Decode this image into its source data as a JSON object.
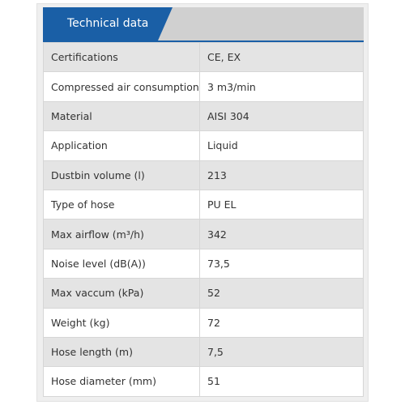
{
  "header": {
    "title": "Technical data"
  },
  "table": {
    "rows": [
      [
        "Certifications",
        "CE, EX"
      ],
      [
        "Compressed air consumption",
        "3 m3/min"
      ],
      [
        "Material",
        "AISI 304"
      ],
      [
        "Application",
        "Liquid"
      ],
      [
        "Dustbin volume (l)",
        "213"
      ],
      [
        "Type of hose",
        "PU EL"
      ],
      [
        "Max airflow (m³/h)",
        "342"
      ],
      [
        "Noise level (dB(A))",
        "73,5"
      ],
      [
        "Max vaccum (kPa)",
        "52"
      ],
      [
        "Weight (kg)",
        "72"
      ],
      [
        "Hose length (m)",
        "7,5"
      ],
      [
        "Hose diameter (mm)",
        "51"
      ]
    ]
  }
}
